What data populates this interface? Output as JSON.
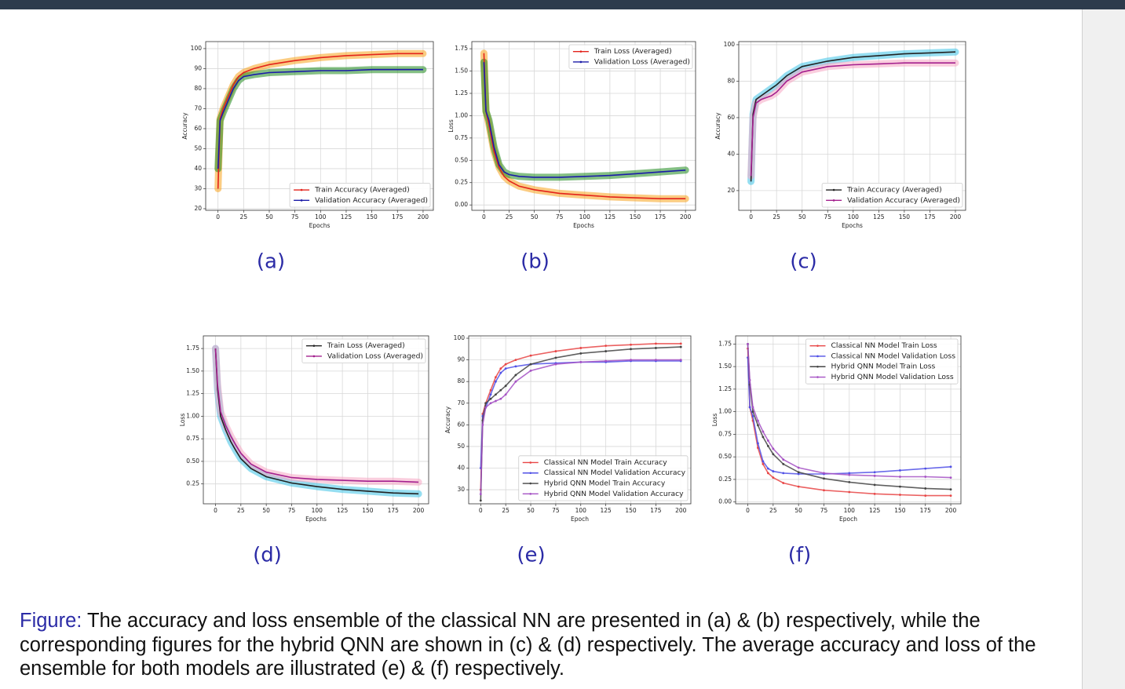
{
  "chart_data": [
    {
      "type": "line",
      "caption": "(a)",
      "xlabel": "Epochs",
      "ylabel": "Accuracy",
      "grid": true,
      "legend": "lower right",
      "xlim": [
        -12,
        210
      ],
      "xticks": [
        0,
        25,
        50,
        75,
        100,
        125,
        150,
        175,
        200
      ],
      "ylim": [
        19.2,
        103.5
      ],
      "yticks": [
        20,
        30,
        40,
        50,
        60,
        70,
        80,
        90,
        100
      ],
      "x": [
        0,
        2,
        5,
        10,
        15,
        20,
        25,
        35,
        50,
        75,
        100,
        125,
        150,
        175,
        200
      ],
      "series": [
        {
          "name": "Train Accuracy (Averaged)",
          "color": "#e3231b",
          "band_color": "#f7a21b",
          "values": [
            30,
            65,
            70,
            76,
            82,
            86,
            88,
            90,
            92,
            94,
            95.5,
            96.5,
            97,
            97.5,
            97.5
          ]
        },
        {
          "name": "Validation Accuracy (Averaged)",
          "color": "#1b1ba8",
          "band_color": "#1f8a1f",
          "values": [
            40,
            64,
            68,
            74,
            80,
            84,
            86,
            87,
            88,
            88.5,
            89,
            89,
            89.5,
            89.5,
            89.5
          ]
        }
      ]
    },
    {
      "type": "line",
      "caption": "(b)",
      "xlabel": "Epochs",
      "ylabel": "Loss",
      "grid": true,
      "legend": "upper right",
      "xlim": [
        -12,
        210
      ],
      "xticks": [
        0,
        25,
        50,
        75,
        100,
        125,
        150,
        175,
        200
      ],
      "ylim": [
        -0.06,
        1.83
      ],
      "yticks": [
        {
          "value": 0,
          "label": "0.00"
        },
        0.25,
        {
          "value": 0.5,
          "label": "0.50"
        },
        0.75,
        {
          "value": 1,
          "label": "1.00"
        },
        1.25,
        {
          "value": 1.5,
          "label": "1.50"
        },
        1.75
      ],
      "x": [
        0,
        2,
        5,
        10,
        15,
        20,
        25,
        35,
        50,
        75,
        100,
        125,
        150,
        175,
        200
      ],
      "series": [
        {
          "name": "Train Loss (Averaged)",
          "color": "#e3231b",
          "band_color": "#f7a21b",
          "values": [
            1.7,
            1.05,
            0.9,
            0.6,
            0.42,
            0.32,
            0.27,
            0.21,
            0.17,
            0.13,
            0.11,
            0.09,
            0.08,
            0.07,
            0.07
          ]
        },
        {
          "name": "Validation Loss (Averaged)",
          "color": "#1b1ba8",
          "band_color": "#1f8a1f",
          "values": [
            1.6,
            1.05,
            0.95,
            0.65,
            0.45,
            0.37,
            0.34,
            0.32,
            0.31,
            0.31,
            0.32,
            0.33,
            0.35,
            0.37,
            0.39
          ]
        }
      ]
    },
    {
      "type": "line",
      "caption": "(c)",
      "xlabel": "Epochs",
      "ylabel": "Accuracy",
      "grid": true,
      "legend": "lower right",
      "xlim": [
        -12,
        210
      ],
      "xticks": [
        0,
        25,
        50,
        75,
        100,
        125,
        150,
        175,
        200
      ],
      "ylim": [
        9.2,
        101.7
      ],
      "yticks": [
        20,
        40,
        60,
        80,
        100
      ],
      "x": [
        0,
        2,
        5,
        10,
        15,
        20,
        25,
        35,
        50,
        75,
        100,
        125,
        150,
        175,
        200
      ],
      "series": [
        {
          "name": "Train Accuracy (Averaged)",
          "color": "#222222",
          "band_color": "#3ec3e6",
          "values": [
            25,
            62,
            70,
            72,
            74,
            76,
            78,
            83,
            88,
            91,
            93,
            94,
            95,
            95.5,
            96
          ]
        },
        {
          "name": "Validation Accuracy (Averaged)",
          "color": "#a4208e",
          "band_color": "#f5a6c2",
          "values": [
            28,
            60,
            68,
            70,
            71,
            72,
            74,
            80,
            85,
            88,
            89,
            89.5,
            90,
            90,
            90
          ]
        }
      ]
    },
    {
      "type": "line",
      "caption": "(d)",
      "xlabel": "Epochs",
      "ylabel": "Loss",
      "grid": true,
      "legend": "upper right",
      "xlim": [
        -12,
        210
      ],
      "xticks": [
        0,
        25,
        50,
        75,
        100,
        125,
        150,
        175,
        200
      ],
      "ylim": [
        0.03,
        1.89
      ],
      "yticks": [
        0.25,
        {
          "value": 0.5,
          "label": "0.50"
        },
        0.75,
        {
          "value": 1,
          "label": "1.00"
        },
        1.25,
        {
          "value": 1.5,
          "label": "1.50"
        },
        1.75
      ],
      "x": [
        0,
        2,
        5,
        10,
        15,
        20,
        25,
        35,
        50,
        75,
        100,
        125,
        150,
        175,
        200
      ],
      "series": [
        {
          "name": "Train Loss (Averaged)",
          "color": "#222222",
          "band_color": "#3ec3e6",
          "values": [
            1.75,
            1.3,
            1.0,
            0.85,
            0.72,
            0.62,
            0.53,
            0.42,
            0.33,
            0.26,
            0.22,
            0.19,
            0.17,
            0.15,
            0.14
          ]
        },
        {
          "name": "Validation Loss (Averaged)",
          "color": "#a4208e",
          "band_color": "#f5a6c2",
          "values": [
            1.75,
            1.35,
            1.05,
            0.9,
            0.78,
            0.68,
            0.59,
            0.47,
            0.38,
            0.32,
            0.3,
            0.29,
            0.28,
            0.28,
            0.27
          ]
        }
      ]
    },
    {
      "type": "line",
      "caption": "(e)",
      "xlabel": "Epoch",
      "ylabel": "Accuracy",
      "grid": true,
      "legend": "lower right",
      "markers": true,
      "xlim": [
        -12,
        210
      ],
      "xticks": [
        0,
        25,
        50,
        75,
        100,
        125,
        150,
        175,
        200
      ],
      "ylim": [
        23.5,
        101.1
      ],
      "yticks": [
        30,
        40,
        50,
        60,
        70,
        80,
        90,
        100
      ],
      "x": [
        0,
        2,
        5,
        10,
        15,
        20,
        25,
        35,
        50,
        75,
        100,
        125,
        150,
        175,
        200
      ],
      "series": [
        {
          "name": "Classical NN Model Train Accuracy",
          "color": "#e84545",
          "values": [
            30,
            65,
            70,
            76,
            82,
            86,
            88,
            90,
            92,
            94,
            95.5,
            96.5,
            97,
            97.5,
            97.5
          ]
        },
        {
          "name": "Classical NN Model Validation Accuracy",
          "color": "#5050e6",
          "values": [
            40,
            64,
            68,
            74,
            80,
            84,
            86,
            87,
            88,
            88.5,
            89,
            89,
            89.5,
            89.5,
            89.5
          ]
        },
        {
          "name": "Hybrid QNN Model Train Accuracy",
          "color": "#444444",
          "values": [
            25,
            62,
            70,
            72,
            74,
            76,
            78,
            83,
            88,
            91,
            93,
            94,
            95,
            95.5,
            96
          ]
        },
        {
          "name": "Hybrid QNN Model Validation Accuracy",
          "color": "#a551c4",
          "values": [
            28,
            60,
            68,
            70,
            71,
            72,
            74,
            80,
            85,
            88,
            89,
            89.5,
            90,
            90,
            90
          ]
        }
      ]
    },
    {
      "type": "line",
      "caption": "(f)",
      "xlabel": "Epoch",
      "ylabel": "Loss",
      "grid": true,
      "legend": "upper right",
      "markers": true,
      "xlim": [
        -12,
        210
      ],
      "xticks": [
        0,
        25,
        50,
        75,
        100,
        125,
        150,
        175,
        200
      ],
      "ylim": [
        -0.02,
        1.84
      ],
      "yticks": [
        {
          "value": 0,
          "label": "0.00"
        },
        0.25,
        {
          "value": 0.5,
          "label": "0.50"
        },
        0.75,
        {
          "value": 1,
          "label": "1.00"
        },
        1.25,
        {
          "value": 1.5,
          "label": "1.50"
        },
        1.75
      ],
      "x": [
        0,
        2,
        5,
        10,
        15,
        20,
        25,
        35,
        50,
        75,
        100,
        125,
        150,
        175,
        200
      ],
      "series": [
        {
          "name": "Classical NN Model Train Loss",
          "color": "#e84545",
          "values": [
            1.7,
            1.05,
            0.9,
            0.6,
            0.42,
            0.32,
            0.27,
            0.21,
            0.17,
            0.13,
            0.11,
            0.09,
            0.08,
            0.07,
            0.07
          ]
        },
        {
          "name": "Classical NN Model Validation Loss",
          "color": "#5050e6",
          "values": [
            1.6,
            1.05,
            0.95,
            0.65,
            0.45,
            0.37,
            0.34,
            0.32,
            0.31,
            0.31,
            0.32,
            0.33,
            0.35,
            0.37,
            0.39
          ]
        },
        {
          "name": "Hybrid QNN Model Train Loss",
          "color": "#444444",
          "values": [
            1.75,
            1.3,
            1.0,
            0.85,
            0.72,
            0.62,
            0.53,
            0.42,
            0.33,
            0.26,
            0.22,
            0.19,
            0.17,
            0.15,
            0.14
          ]
        },
        {
          "name": "Hybrid QNN Model Validation Loss",
          "color": "#a551c4",
          "values": [
            1.75,
            1.35,
            1.05,
            0.9,
            0.78,
            0.68,
            0.59,
            0.47,
            0.38,
            0.32,
            0.3,
            0.29,
            0.28,
            0.28,
            0.27
          ]
        }
      ]
    }
  ],
  "figure_caption": {
    "label": "Figure:",
    "text": "The accuracy and loss ensemble of the classical NN are presented in (a) & (b) respectively, while the corresponding figures for the hybrid QNN are shown in (c) & (d) respectively. The average accuracy and loss of the ensemble for both models are illustrated (e) & (f) respectively."
  }
}
